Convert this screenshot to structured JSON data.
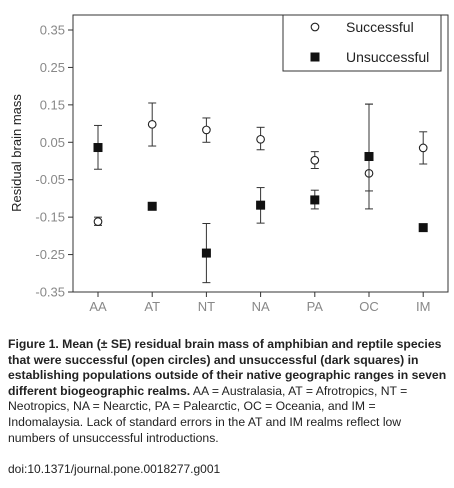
{
  "chart_data": {
    "type": "scatter",
    "ylabel": "Residual brain mass",
    "categories": [
      "AA",
      "AT",
      "NT",
      "NA",
      "PA",
      "OC",
      "IM"
    ],
    "yticks": [
      "0.35",
      "0.25",
      "0.15",
      "0.05",
      "-0.05",
      "-0.15",
      "-0.25",
      "-0.35"
    ],
    "ytick_values": [
      0.35,
      0.25,
      0.15,
      0.05,
      -0.05,
      -0.15,
      -0.25,
      -0.35
    ],
    "ylim": [
      -0.35,
      0.35
    ],
    "legend_position": "top-right",
    "grid": false,
    "series": [
      {
        "name": "Successful",
        "marker": "open-circle",
        "values": [
          -0.162,
          0.098,
          0.083,
          0.058,
          0.002,
          -0.033,
          0.035
        ],
        "errors": [
          [
            -0.172,
            -0.15
          ],
          [
            0.04,
            0.155
          ],
          [
            0.05,
            0.115
          ],
          [
            0.03,
            0.09
          ],
          [
            -0.02,
            0.025
          ],
          [
            -0.128,
            0.152
          ],
          [
            -0.008,
            0.078
          ]
        ]
      },
      {
        "name": "Unsuccessful",
        "marker": "filled-square",
        "values": [
          0.036,
          -0.121,
          -0.246,
          -0.118,
          -0.104,
          0.012,
          -0.178
        ],
        "errors": [
          [
            -0.022,
            0.095
          ],
          null,
          [
            -0.325,
            -0.167
          ],
          [
            -0.166,
            -0.071
          ],
          [
            -0.128,
            -0.078
          ],
          [
            -0.08,
            0.152
          ],
          null
        ]
      }
    ]
  },
  "caption": {
    "bold": "Figure 1. Mean (± SE) residual brain mass of amphibian and reptile species that were successful (open circles) and unsuccessful (dark squares) in establishing populations outside of their native geographic ranges in seven different biogeographic realms.",
    "text": " AA = Australasia, AT = Afrotropics, NT = Neotropics, NA = Nearctic, PA = Palearctic, OC = Oceania, and IM = Indomalaysia. Lack of standard errors in the AT and IM realms reflect low numbers of unsuccessful introductions.",
    "doi": "doi:10.1371/journal.pone.0018277.g001"
  }
}
